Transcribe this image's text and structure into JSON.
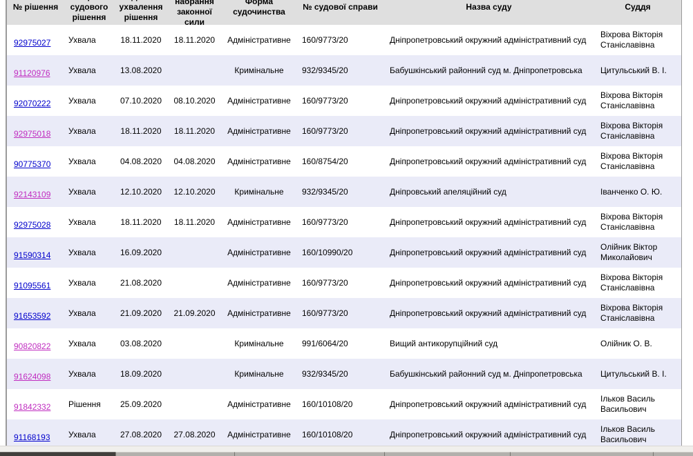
{
  "colors": {
    "link": "#0000cc",
    "link_visited": "#c02cc0",
    "header_bg": "#dfdfdf",
    "header_text": "#000000",
    "row_alt_bg": "#eaebf8"
  },
  "table": {
    "columns": [
      {
        "key": "decision_no",
        "label": "№ рішення"
      },
      {
        "key": "form",
        "label": "Форма судового рішення"
      },
      {
        "key": "adopted",
        "label": "Дата ухвалення рішення"
      },
      {
        "key": "effective",
        "label": "Дата набрання законної сили"
      },
      {
        "key": "proceeding",
        "label": "Форма судочинства"
      },
      {
        "key": "case_no",
        "label": "№ судової справи"
      },
      {
        "key": "court",
        "label": "Назва суду"
      },
      {
        "key": "judge",
        "label": "Суддя"
      }
    ],
    "rows": [
      {
        "decision_no": "92975027",
        "visited": false,
        "form": "Ухвала",
        "adopted": "18.11.2020",
        "effective": "18.11.2020",
        "proceeding": "Адміністративне",
        "case_no": "160/9773/20",
        "court": "Дніпропетровський окружний адміністративний суд",
        "judge": "Віхрова Вікторія Станіславівна"
      },
      {
        "decision_no": "91120976",
        "visited": true,
        "form": "Ухвала",
        "adopted": "13.08.2020",
        "effective": "",
        "proceeding": "Кримінальне",
        "case_no": "932/9345/20",
        "court": "Бабушкінський районний суд м. Дніпропетровська",
        "judge": "Цитульський В. І."
      },
      {
        "decision_no": "92070222",
        "visited": false,
        "form": "Ухвала",
        "adopted": "07.10.2020",
        "effective": "08.10.2020",
        "proceeding": "Адміністративне",
        "case_no": "160/9773/20",
        "court": "Дніпропетровський окружний адміністративний суд",
        "judge": "Віхрова Вікторія Станіславівна"
      },
      {
        "decision_no": "92975018",
        "visited": true,
        "form": "Ухвала",
        "adopted": "18.11.2020",
        "effective": "18.11.2020",
        "proceeding": "Адміністративне",
        "case_no": "160/9773/20",
        "court": "Дніпропетровський окружний адміністративний суд",
        "judge": "Віхрова Вікторія Станіславівна"
      },
      {
        "decision_no": "90775370",
        "visited": false,
        "form": "Ухвала",
        "adopted": "04.08.2020",
        "effective": "04.08.2020",
        "proceeding": "Адміністративне",
        "case_no": "160/8754/20",
        "court": "Дніпропетровський окружний адміністративний суд",
        "judge": "Віхрова Вікторія Станіславівна"
      },
      {
        "decision_no": "92143109",
        "visited": true,
        "form": "Ухвала",
        "adopted": "12.10.2020",
        "effective": "12.10.2020",
        "proceeding": "Кримінальне",
        "case_no": "932/9345/20",
        "court": "Дніпровський апеляційний суд",
        "judge": "Іванченко О. Ю."
      },
      {
        "decision_no": "92975028",
        "visited": false,
        "form": "Ухвала",
        "adopted": "18.11.2020",
        "effective": "18.11.2020",
        "proceeding": "Адміністративне",
        "case_no": "160/9773/20",
        "court": "Дніпропетровський окружний адміністративний суд",
        "judge": "Віхрова Вікторія Станіславівна"
      },
      {
        "decision_no": "91590314",
        "visited": false,
        "form": "Ухвала",
        "adopted": "16.09.2020",
        "effective": "",
        "proceeding": "Адміністративне",
        "case_no": "160/10990/20",
        "court": "Дніпропетровський окружний адміністративний суд",
        "judge": "Олійник Віктор Миколайович"
      },
      {
        "decision_no": "91095561",
        "visited": false,
        "form": "Ухвала",
        "adopted": "21.08.2020",
        "effective": "",
        "proceeding": "Адміністративне",
        "case_no": "160/9773/20",
        "court": "Дніпропетровський окружний адміністративний суд",
        "judge": "Віхрова Вікторія Станіславівна"
      },
      {
        "decision_no": "91653592",
        "visited": false,
        "form": "Ухвала",
        "adopted": "21.09.2020",
        "effective": "21.09.2020",
        "proceeding": "Адміністративне",
        "case_no": "160/9773/20",
        "court": "Дніпропетровський окружний адміністративний суд",
        "judge": "Віхрова Вікторія Станіславівна"
      },
      {
        "decision_no": "90820822",
        "visited": true,
        "form": "Ухвала",
        "adopted": "03.08.2020",
        "effective": "",
        "proceeding": "Кримінальне",
        "case_no": "991/6064/20",
        "court": "Вищий антикорупційний суд",
        "judge": "Олійник О. В."
      },
      {
        "decision_no": "91624098",
        "visited": true,
        "form": "Ухвала",
        "adopted": "18.09.2020",
        "effective": "",
        "proceeding": "Кримінальне",
        "case_no": "932/9345/20",
        "court": "Бабушкінський районний суд м. Дніпропетровська",
        "judge": "Цитульський В. І."
      },
      {
        "decision_no": "91842332",
        "visited": true,
        "form": "Рішення",
        "adopted": "25.09.2020",
        "effective": "",
        "proceeding": "Адміністративне",
        "case_no": "160/10108/20",
        "court": "Дніпропетровський окружний адміністративний суд",
        "judge": "Ільков Василь Васильович"
      },
      {
        "decision_no": "91168193",
        "visited": false,
        "form": "Ухвала",
        "adopted": "27.08.2020",
        "effective": "27.08.2020",
        "proceeding": "Адміністративне",
        "case_no": "160/10108/20",
        "court": "Дніпропетровський окружний адміністративний суд",
        "judge": "Ільков Василь Васильович"
      }
    ]
  }
}
